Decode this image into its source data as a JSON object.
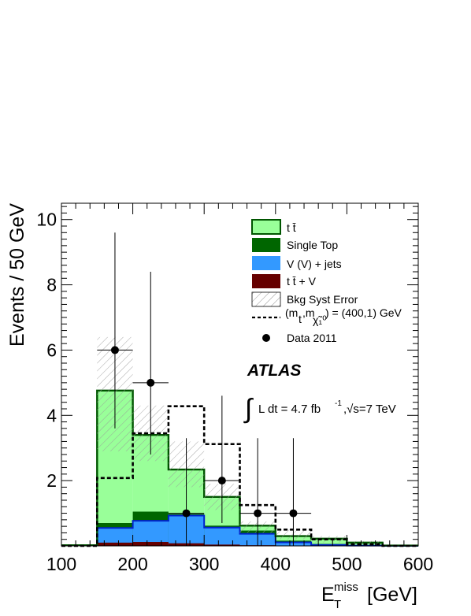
{
  "chart_data": {
    "type": "bar",
    "stacked": true,
    "bin_width": 50,
    "bins": [
      [
        0,
        150
      ],
      [
        150,
        200
      ],
      [
        200,
        250
      ],
      [
        250,
        300
      ],
      [
        300,
        350
      ],
      [
        350,
        400
      ],
      [
        400,
        450
      ],
      [
        450,
        500
      ],
      [
        500,
        550
      ],
      [
        550,
        600
      ]
    ],
    "xlim": [
      100,
      600
    ],
    "ylim": [
      0,
      10.5
    ],
    "xticks": [
      100,
      200,
      300,
      400,
      500,
      600
    ],
    "yticks": [
      2,
      4,
      6,
      8,
      10
    ],
    "ylabel": "Events / 50 GeV",
    "xlabel_main": "E",
    "xlabel_sup": "miss",
    "xlabel_sub": "T",
    "xlabel_unit": "[GeV]",
    "colors": {
      "ttbar_fill": "#99ff99",
      "ttbar_line": "#005500",
      "single_top": "#006600",
      "vjets_fill": "#3399ff",
      "vjets_line": "#0022cc",
      "ttv": "#660000",
      "syst_hatch": "#aaaaaa"
    },
    "series": [
      {
        "name": "t t̄ + V",
        "key": "ttv",
        "values": [
          0.02,
          0.1,
          0.12,
          0.08,
          0.04,
          0.02,
          0.01,
          0.0,
          0.0,
          0.0
        ]
      },
      {
        "name": "V (V) + jets",
        "key": "vjets",
        "values": [
          0.0,
          0.45,
          0.65,
          0.85,
          0.52,
          0.35,
          0.1,
          0.03,
          0.01,
          0.0
        ]
      },
      {
        "name": "Single Top",
        "key": "single_top",
        "values": [
          0.0,
          0.15,
          0.28,
          0.05,
          0.06,
          0.1,
          0.05,
          0.03,
          0.01,
          0.0
        ]
      },
      {
        "name": "t t̄",
        "key": "ttbar",
        "values": [
          0.0,
          4.06,
          2.35,
          1.36,
          0.88,
          0.15,
          0.14,
          0.16,
          0.08,
          0.01
        ]
      }
    ],
    "syst_error": {
      "name": "Bkg Syst Error",
      "low": [
        0.0,
        2.9,
        2.6,
        1.8,
        1.1,
        0.4,
        0.2,
        0.1,
        0.05,
        0.0
      ],
      "high": [
        0.0,
        6.4,
        4.3,
        3.2,
        1.9,
        0.75,
        0.5,
        0.3,
        0.15,
        0.0
      ]
    },
    "signal": {
      "name": "(m_t,m_chi) = (400,1) GeV",
      "values": [
        0.0,
        2.08,
        3.45,
        4.28,
        3.12,
        1.25,
        0.5,
        0.2,
        0.05,
        0.0
      ]
    },
    "data": {
      "name": "Data 2011",
      "x": [
        175,
        225,
        275,
        325,
        375,
        425
      ],
      "y": [
        6,
        5,
        1,
        2,
        1,
        1
      ],
      "err_low": [
        2.4,
        2.2,
        1.0,
        1.3,
        1.0,
        1.0
      ],
      "err_high": [
        3.6,
        3.4,
        2.3,
        2.6,
        2.3,
        2.3
      ]
    }
  },
  "legend": {
    "ttbar": "t t̄",
    "single_top": "Single Top",
    "vjets": "V (V) + jets",
    "ttv": "t t̄ + V",
    "syst": "Bkg Syst Error",
    "signal_prefix": "(m",
    "signal_sub1": "t",
    "signal_mid": ",m",
    "signal_sub2": "χ̃₁⁰",
    "signal_suffix": ") = (400,1) GeV",
    "data": "Data 2011"
  },
  "annotations": {
    "atlas": "ATLAS",
    "integral": "∫",
    "lumi": "L dt = 4.7 fb",
    "lumi_sup": "-1",
    "sqrt_s": ",√s=7 TeV"
  }
}
